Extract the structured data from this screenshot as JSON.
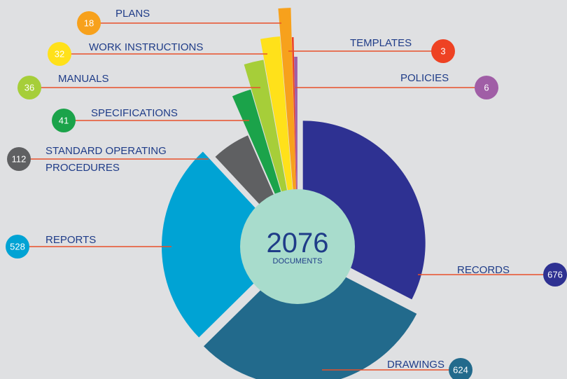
{
  "chart_data": {
    "type": "radial-pie",
    "total": 2076,
    "center_label": "DOCUMENTS",
    "categories": [
      "RECORDS",
      "DRAWINGS",
      "REPORTS",
      "STANDARD OPERATING PROCEDURES",
      "SPECIFICATIONS",
      "MANUALS",
      "WORK INSTRUCTIONS",
      "PLANS",
      "TEMPLATES",
      "POLICIES"
    ],
    "values": [
      676,
      624,
      528,
      112,
      41,
      36,
      32,
      18,
      3,
      6
    ],
    "colors": [
      "#2e3192",
      "#226a8c",
      "#00a3d4",
      "#5f6062",
      "#1ba34a",
      "#a6ce39",
      "#ffe11a",
      "#f7a11c",
      "#ee4223",
      "#a05ea6"
    ]
  }
}
